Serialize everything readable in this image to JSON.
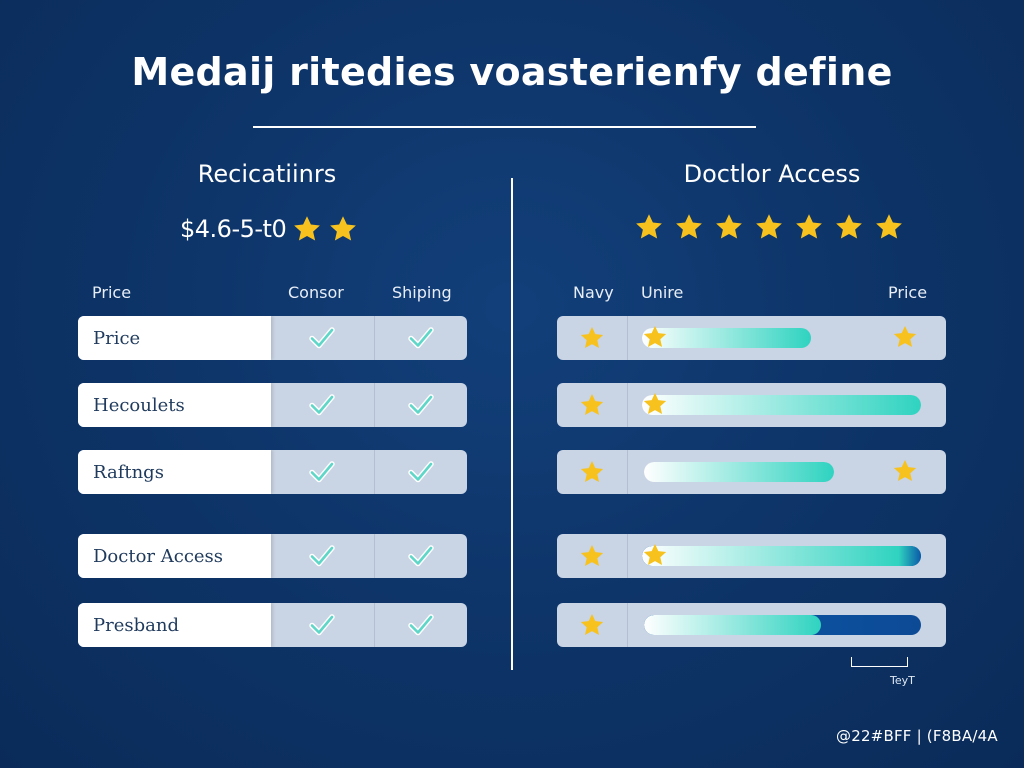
{
  "title": "Medaij ritedies voasterienfy define",
  "left_panel": {
    "heading": "Recicatiinrs",
    "price": "$4.6-5-t0",
    "columns": [
      "Price",
      "Consor",
      "Shiping"
    ],
    "rows": [
      {
        "label": "Price",
        "checks": [
          true,
          true
        ]
      },
      {
        "label": "Hecoulets",
        "checks": [
          true,
          true
        ]
      },
      {
        "label": "Raftngs",
        "checks": [
          true,
          true
        ]
      },
      {
        "label": "Doctor Access",
        "checks": [
          true,
          true
        ]
      },
      {
        "label": "Presband",
        "checks": [
          true,
          true
        ]
      }
    ]
  },
  "right_panel": {
    "heading": "Doctlor Access",
    "rating_star_count": 7,
    "columns": [
      "Navy",
      "Unire",
      "Price"
    ],
    "rows": [
      {
        "level": 0.88
      },
      {
        "level": 1.0
      },
      {
        "level": 1.0
      },
      {
        "level": 1.0
      },
      {
        "level": 0.64
      }
    ]
  },
  "legend": {
    "label": "TeyT"
  },
  "footer": {
    "code": "@22#BFF | (F8BA/4A"
  },
  "colors": {
    "background": "#0d3366",
    "star": "#f7c21e",
    "check": "#5ed6c8",
    "bar_teal": "#2fd3c0",
    "bar_blue": "#0a5aa8"
  }
}
